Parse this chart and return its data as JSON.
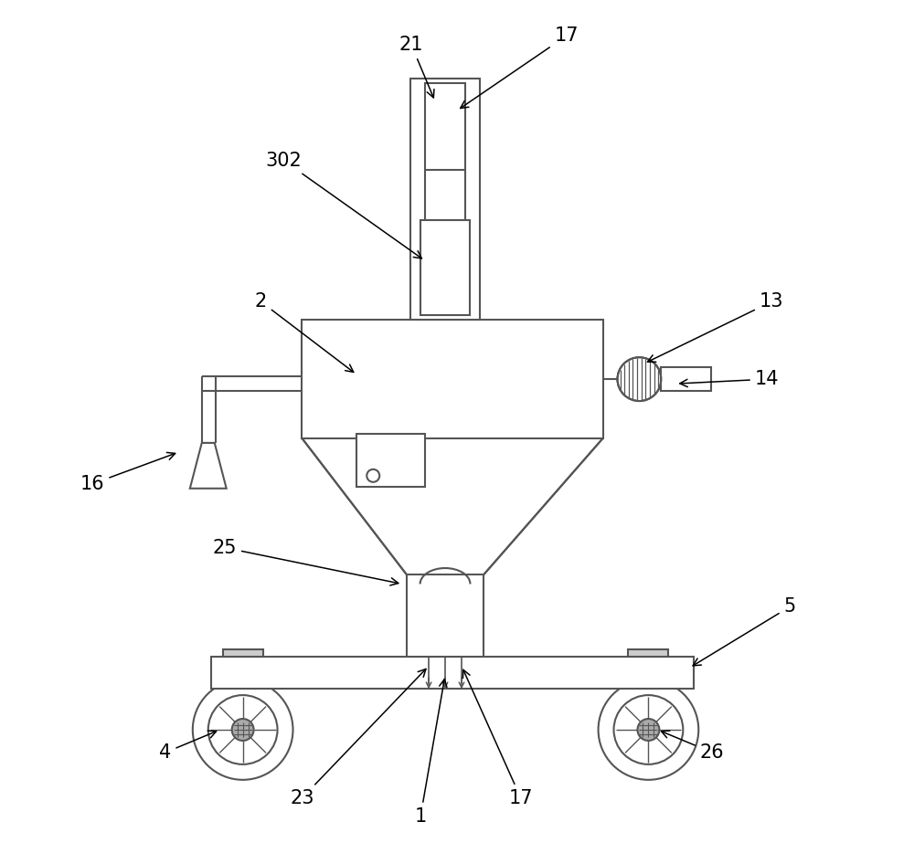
{
  "bg_color": "#ffffff",
  "line_color": "#555555",
  "line_width": 1.5,
  "label_fontsize": 15,
  "figsize": [
    10.0,
    9.23
  ]
}
